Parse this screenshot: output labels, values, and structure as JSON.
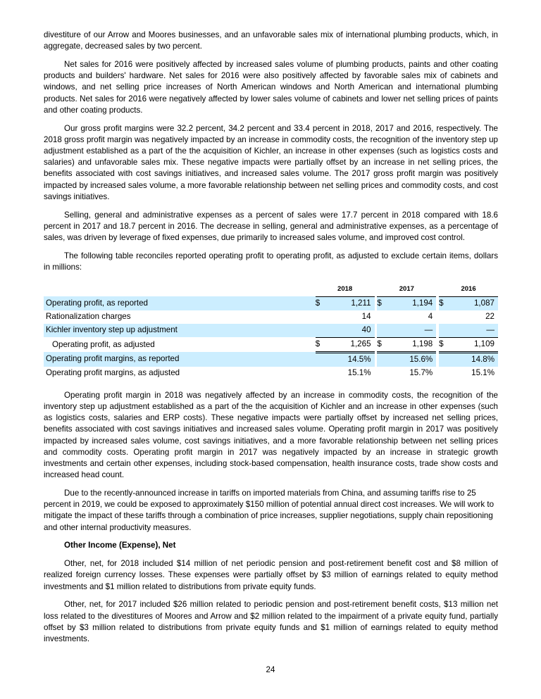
{
  "paragraphs_top": [
    "divestiture of our Arrow and Moores businesses, and an unfavorable sales mix of international plumbing products, which, in aggregate, decreased sales by two percent.",
    "Net sales for 2016 were positively affected by increased sales volume of plumbing products, paints and other coating products and builders' hardware. Net sales for 2016 were also positively affected by favorable sales mix of cabinets and windows, and net selling price increases of North American windows and North American and international plumbing products. Net sales for 2016 were negatively affected by lower sales volume of cabinets and lower net selling prices of paints and other coating products.",
    "Our gross profit margins were 32.2 percent, 34.2 percent and 33.4 percent in 2018, 2017 and 2016, respectively. The 2018 gross profit margin was negatively impacted by an increase in commodity costs, the recognition of the inventory step up adjustment established as a part of the the acquisition of Kichler, an increase in other expenses (such as logistics costs and salaries) and unfavorable sales mix. These negative impacts were partially offset by an increase in net selling prices, the benefits associated with cost savings initiatives, and increased sales volume. The 2017 gross profit margin was positively impacted by increased sales volume, a more favorable relationship between net selling prices and commodity costs, and cost savings initiatives.",
    "Selling, general and administrative expenses as a percent of sales were 17.7 percent in 2018 compared with 18.6 percent in 2017 and 18.7 percent in 2016. The decrease in selling, general and administrative expenses, as a percentage of sales, was driven by leverage of fixed expenses, due primarily to increased sales volume, and improved cost control.",
    "The following table reconciles reported operating profit to operating profit, as adjusted to exclude certain items, dollars in millions:"
  ],
  "table": {
    "years": [
      "2018",
      "2017",
      "2016"
    ],
    "currency": "$",
    "rows": [
      {
        "label": "Operating profit, as reported",
        "values": [
          "1,211",
          "1,194",
          "1,087"
        ]
      },
      {
        "label": "Rationalization charges",
        "values": [
          "14",
          "4",
          "22"
        ]
      },
      {
        "label": "Kichler inventory step up adjustment",
        "values": [
          "40",
          "—",
          "—"
        ]
      },
      {
        "label": "Operating profit, as adjusted",
        "values": [
          "1,265",
          "1,198",
          "1,109"
        ]
      },
      {
        "label": "Operating profit margins, as reported",
        "values": [
          "14.5%",
          "15.6%",
          "14.8%"
        ]
      },
      {
        "label": "Operating profit margins, as adjusted",
        "values": [
          "15.1%",
          "15.7%",
          "15.1%"
        ]
      }
    ]
  },
  "paragraphs_bottom": [
    "Operating profit margin in 2018 was negatively affected by an increase in commodity costs, the recognition of the inventory step up adjustment established as a part of the the acquisition of Kichler and an increase in other expenses (such as logistics costs, salaries and ERP costs). These negative impacts were partially offset by increased net selling prices, benefits associated with cost savings initiatives and increased sales volume. Operating profit margin in 2017 was positively impacted by increased sales volume, cost savings initiatives, and a more favorable relationship between net selling prices and commodity costs. Operating profit margin in 2017 was negatively impacted by an increase in strategic growth investments and certain other expenses, including stock-based compensation, health insurance costs, trade show costs and increased head count.",
    "Due to the recently-announced increase in tariffs on imported materials from China, and assuming tariffs rise to 25 percent in 2019, we could be exposed to approximately $150 million of potential annual direct cost increases. We will work to mitigate the impact of these tariffs through a combination of price increases, supplier negotiations, supply chain repositioning and other internal productivity measures."
  ],
  "section_heading": "Other Income (Expense), Net",
  "paragraphs_other": [
    "Other, net, for 2018 included $14 million of net periodic pension and post-retirement benefit cost and $8 million of realized foreign currency losses. These expenses were partially offset by $3 million of earnings related to equity method investments and $1 million related to distributions from private equity funds.",
    "Other, net, for 2017 included $26 million related to periodic pension and post-retirement benefit costs, $13 million net loss related to the divestitures of Moores and Arrow and $2 million related to the impairment of a private equity fund, partially offset by $3 million related to distributions from private equity funds and $1 million of earnings related to equity method investments."
  ],
  "page_number": "24",
  "colors": {
    "table_shade": "#cceeff"
  }
}
